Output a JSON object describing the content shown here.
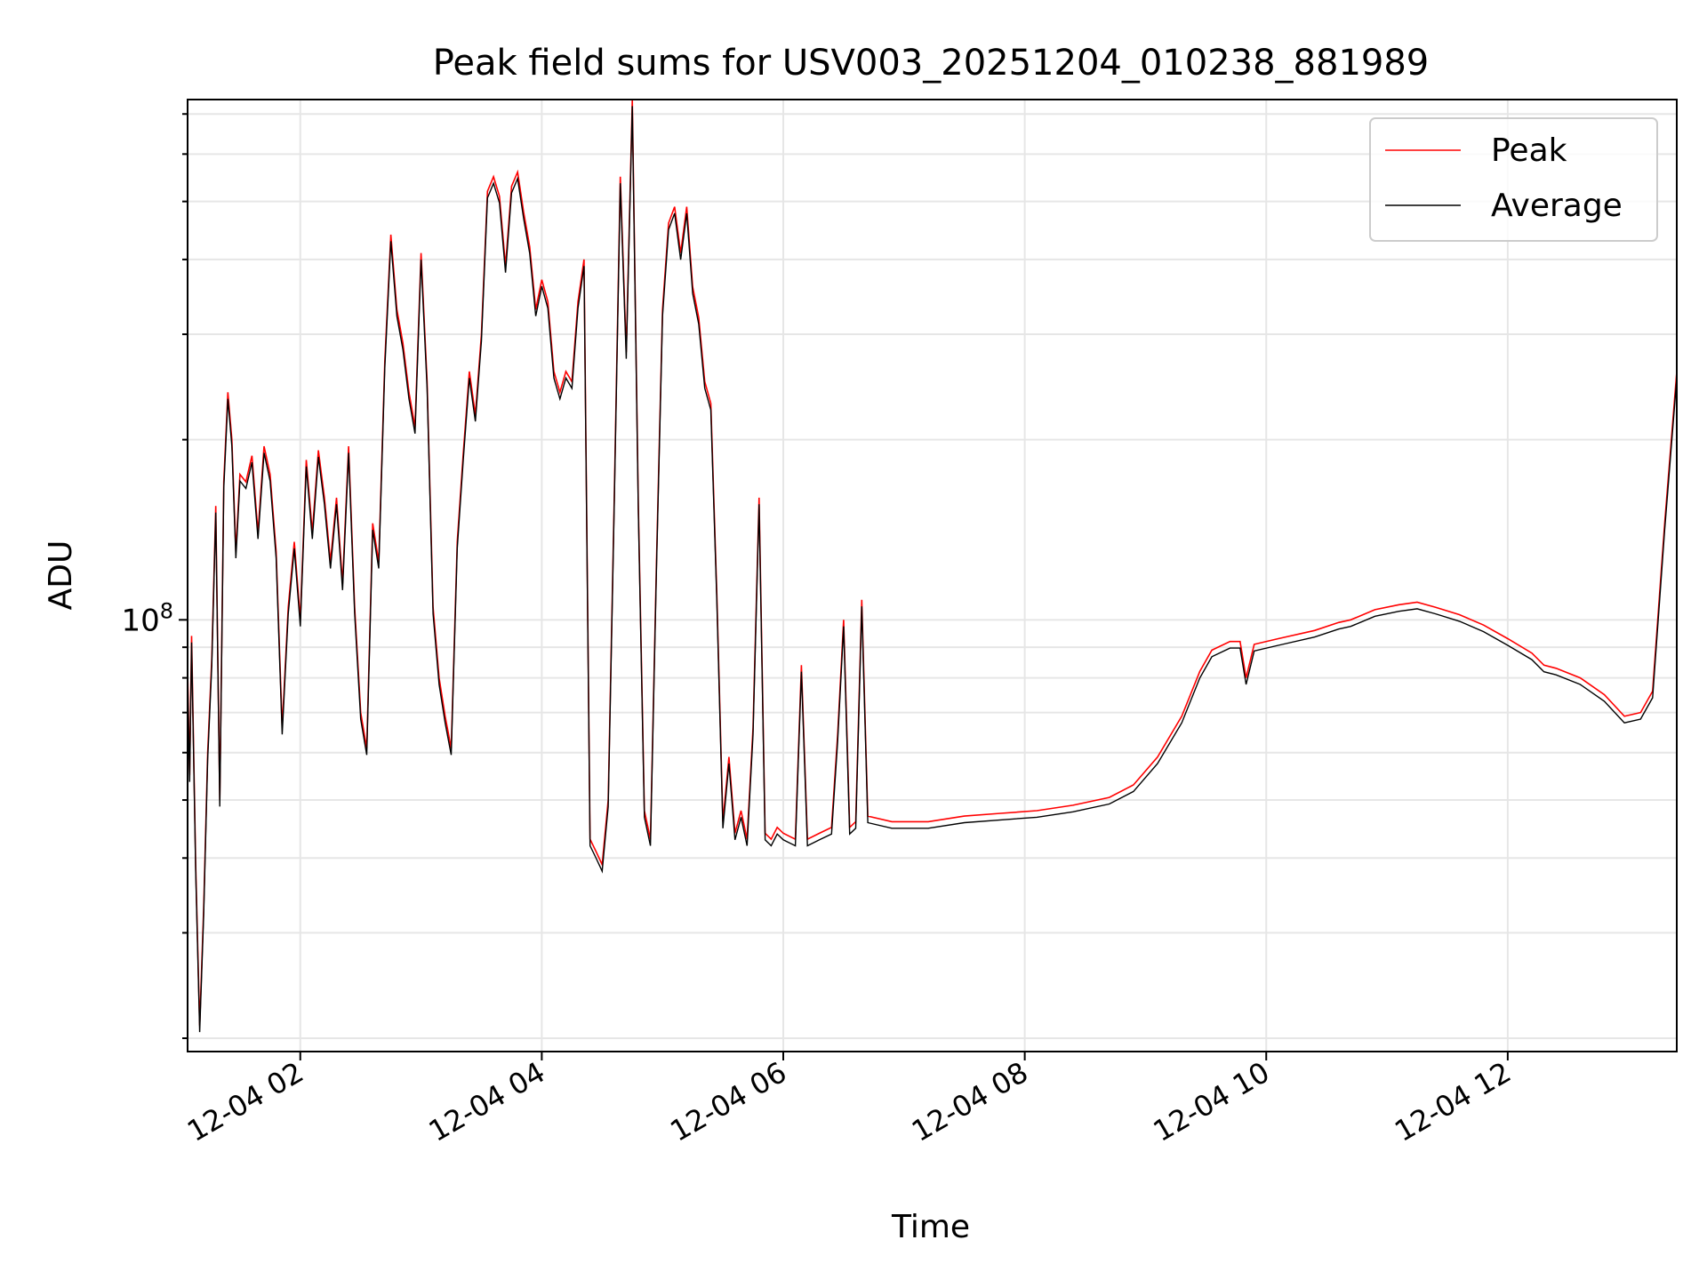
{
  "chart_data": {
    "type": "line",
    "title": "Peak field sums for USV003_20251204_010238_881989",
    "xlabel": "Time",
    "ylabel": "ADU",
    "yscale": "log",
    "xlim": [
      "2025-12-04 01:04",
      "2025-12-04 13:24"
    ],
    "ylim": [
      19000000,
      740000000
    ],
    "x_ticks": [
      "12-04 02",
      "12-04 04",
      "12-04 06",
      "12-04 08",
      "12-04 10",
      "12-04 12"
    ],
    "x_tick_values": [
      "2025-12-04 02:00",
      "2025-12-04 04:00",
      "2025-12-04 06:00",
      "2025-12-04 08:00",
      "2025-12-04 10:00",
      "2025-12-04 12:00"
    ],
    "y_ticks": [
      {
        "base": "10",
        "exp": "8",
        "value": 100000000
      }
    ],
    "grid": true,
    "legend_position": "top-right",
    "series": [
      {
        "name": "Peak",
        "color": "#ff0000",
        "points": [
          [
            "2025-12-04 01:04",
            83000000.0
          ],
          [
            "2025-12-04 01:05",
            55000000.0
          ],
          [
            "2025-12-04 01:06",
            94000000.0
          ],
          [
            "2025-12-04 01:08",
            39000000.0
          ],
          [
            "2025-12-04 01:10",
            21000000.0
          ],
          [
            "2025-12-04 01:12",
            33000000.0
          ],
          [
            "2025-12-04 01:14",
            60000000.0
          ],
          [
            "2025-12-04 01:16",
            86000000.0
          ],
          [
            "2025-12-04 01:18",
            155000000.0
          ],
          [
            "2025-12-04 01:20",
            50000000.0
          ],
          [
            "2025-12-04 01:22",
            170000000.0
          ],
          [
            "2025-12-04 01:24",
            240000000.0
          ],
          [
            "2025-12-04 01:26",
            200000000.0
          ],
          [
            "2025-12-04 01:28",
            130000000.0
          ],
          [
            "2025-12-04 01:30",
            175000000.0
          ],
          [
            "2025-12-04 01:33",
            170000000.0
          ],
          [
            "2025-12-04 01:36",
            188000000.0
          ],
          [
            "2025-12-04 01:39",
            140000000.0
          ],
          [
            "2025-12-04 01:42",
            195000000.0
          ],
          [
            "2025-12-04 01:45",
            175000000.0
          ],
          [
            "2025-12-04 01:48",
            130000000.0
          ],
          [
            "2025-12-04 01:51",
            66000000.0
          ],
          [
            "2025-12-04 01:54",
            105000000.0
          ],
          [
            "2025-12-04 01:57",
            135000000.0
          ],
          [
            "2025-12-04 02:00",
            100000000.0
          ],
          [
            "2025-12-04 02:03",
            185000000.0
          ],
          [
            "2025-12-04 02:06",
            140000000.0
          ],
          [
            "2025-12-04 02:09",
            192000000.0
          ],
          [
            "2025-12-04 02:12",
            160000000.0
          ],
          [
            "2025-12-04 02:15",
            125000000.0
          ],
          [
            "2025-12-04 02:18",
            160000000.0
          ],
          [
            "2025-12-04 02:21",
            115000000.0
          ],
          [
            "2025-12-04 02:24",
            195000000.0
          ],
          [
            "2025-12-04 02:27",
            105000000.0
          ],
          [
            "2025-12-04 02:30",
            70000000.0
          ],
          [
            "2025-12-04 02:33",
            61000000.0
          ],
          [
            "2025-12-04 02:36",
            145000000.0
          ],
          [
            "2025-12-04 02:39",
            125000000.0
          ],
          [
            "2025-12-04 02:42",
            270000000.0
          ],
          [
            "2025-12-04 02:45",
            440000000.0
          ],
          [
            "2025-12-04 02:48",
            330000000.0
          ],
          [
            "2025-12-04 02:51",
            290000000.0
          ],
          [
            "2025-12-04 02:54",
            240000000.0
          ],
          [
            "2025-12-04 02:57",
            210000000.0
          ],
          [
            "2025-12-04 03:00",
            410000000.0
          ],
          [
            "2025-12-04 03:03",
            250000000.0
          ],
          [
            "2025-12-04 03:06",
            105000000.0
          ],
          [
            "2025-12-04 03:09",
            80000000.0
          ],
          [
            "2025-12-04 03:12",
            69000000.0
          ],
          [
            "2025-12-04 03:15",
            61000000.0
          ],
          [
            "2025-12-04 03:18",
            135000000.0
          ],
          [
            "2025-12-04 03:21",
            190000000.0
          ],
          [
            "2025-12-04 03:24",
            260000000.0
          ],
          [
            "2025-12-04 03:27",
            220000000.0
          ],
          [
            "2025-12-04 03:30",
            300000000.0
          ],
          [
            "2025-12-04 03:33",
            520000000.0
          ],
          [
            "2025-12-04 03:36",
            550000000.0
          ],
          [
            "2025-12-04 03:39",
            510000000.0
          ],
          [
            "2025-12-04 03:42",
            390000000.0
          ],
          [
            "2025-12-04 03:45",
            530000000.0
          ],
          [
            "2025-12-04 03:48",
            560000000.0
          ],
          [
            "2025-12-04 03:51",
            480000000.0
          ],
          [
            "2025-12-04 03:54",
            420000000.0
          ],
          [
            "2025-12-04 03:57",
            330000000.0
          ],
          [
            "2025-12-04 04:00",
            370000000.0
          ],
          [
            "2025-12-04 04:03",
            340000000.0
          ],
          [
            "2025-12-04 04:06",
            260000000.0
          ],
          [
            "2025-12-04 04:09",
            240000000.0
          ],
          [
            "2025-12-04 04:12",
            260000000.0
          ],
          [
            "2025-12-04 04:15",
            250000000.0
          ],
          [
            "2025-12-04 04:18",
            340000000.0
          ],
          [
            "2025-12-04 04:21",
            400000000.0
          ],
          [
            "2025-12-04 04:24",
            43000000.0
          ],
          [
            "2025-12-04 04:27",
            41000000.0
          ],
          [
            "2025-12-04 04:30",
            39000000.0
          ],
          [
            "2025-12-04 04:33",
            50000000.0
          ],
          [
            "2025-12-04 04:36",
            160000000.0
          ],
          [
            "2025-12-04 04:39",
            550000000.0
          ],
          [
            "2025-12-04 04:42",
            280000000.0
          ],
          [
            "2025-12-04 04:45",
            740000000.0
          ],
          [
            "2025-12-04 04:48",
            155000000.0
          ],
          [
            "2025-12-04 04:51",
            48000000.0
          ],
          [
            "2025-12-04 04:54",
            43000000.0
          ],
          [
            "2025-12-04 04:57",
            125000000.0
          ],
          [
            "2025-12-04 05:00",
            330000000.0
          ],
          [
            "2025-12-04 05:03",
            460000000.0
          ],
          [
            "2025-12-04 05:06",
            490000000.0
          ],
          [
            "2025-12-04 05:09",
            410000000.0
          ],
          [
            "2025-12-04 05:12",
            490000000.0
          ],
          [
            "2025-12-04 05:15",
            360000000.0
          ],
          [
            "2025-12-04 05:18",
            320000000.0
          ],
          [
            "2025-12-04 05:21",
            250000000.0
          ],
          [
            "2025-12-04 05:24",
            230000000.0
          ],
          [
            "2025-12-04 05:27",
            110000000.0
          ],
          [
            "2025-12-04 05:30",
            46000000.0
          ],
          [
            "2025-12-04 05:33",
            59000000.0
          ],
          [
            "2025-12-04 05:36",
            44000000.0
          ],
          [
            "2025-12-04 05:39",
            48000000.0
          ],
          [
            "2025-12-04 05:42",
            43000000.0
          ],
          [
            "2025-12-04 05:45",
            66000000.0
          ],
          [
            "2025-12-04 05:48",
            160000000.0
          ],
          [
            "2025-12-04 05:51",
            44000000.0
          ],
          [
            "2025-12-04 05:54",
            43000000.0
          ],
          [
            "2025-12-04 05:57",
            45000000.0
          ],
          [
            "2025-12-04 06:00",
            44000000.0
          ],
          [
            "2025-12-04 06:06",
            43000000.0
          ],
          [
            "2025-12-04 06:09",
            84000000.0
          ],
          [
            "2025-12-04 06:12",
            43000000.0
          ],
          [
            "2025-12-04 06:18",
            44000000.0
          ],
          [
            "2025-12-04 06:24",
            45000000.0
          ],
          [
            "2025-12-04 06:27",
            64000000.0
          ],
          [
            "2025-12-04 06:30",
            100000000.0
          ],
          [
            "2025-12-04 06:33",
            45000000.0
          ],
          [
            "2025-12-04 06:36",
            46000000.0
          ],
          [
            "2025-12-04 06:39",
            108000000.0
          ],
          [
            "2025-12-04 06:42",
            47000000.0
          ],
          [
            "2025-12-04 06:54",
            46000000.0
          ],
          [
            "2025-12-04 07:12",
            46000000.0
          ],
          [
            "2025-12-04 07:30",
            47000000.0
          ],
          [
            "2025-12-04 07:48",
            47500000.0
          ],
          [
            "2025-12-04 08:06",
            48000000.0
          ],
          [
            "2025-12-04 08:24",
            49000000.0
          ],
          [
            "2025-12-04 08:42",
            50500000.0
          ],
          [
            "2025-12-04 08:54",
            53000000.0
          ],
          [
            "2025-12-04 09:06",
            59000000.0
          ],
          [
            "2025-12-04 09:18",
            69000000.0
          ],
          [
            "2025-12-04 09:27",
            82000000.0
          ],
          [
            "2025-12-04 09:33",
            89000000.0
          ],
          [
            "2025-12-04 09:42",
            92000000.0
          ],
          [
            "2025-12-04 09:47",
            92000000.0
          ],
          [
            "2025-12-04 09:50",
            80000000.0
          ],
          [
            "2025-12-04 09:54",
            91000000.0
          ],
          [
            "2025-12-04 10:06",
            93000000.0
          ],
          [
            "2025-12-04 10:24",
            96000000.0
          ],
          [
            "2025-12-04 10:36",
            99000000.0
          ],
          [
            "2025-12-04 10:42",
            100000000.0
          ],
          [
            "2025-12-04 10:54",
            104000000.0
          ],
          [
            "2025-12-04 11:06",
            106000000.0
          ],
          [
            "2025-12-04 11:15",
            107000000.0
          ],
          [
            "2025-12-04 11:24",
            105000000.0
          ],
          [
            "2025-12-04 11:36",
            102000000.0
          ],
          [
            "2025-12-04 11:48",
            98000000.0
          ],
          [
            "2025-12-04 12:00",
            93000000.0
          ],
          [
            "2025-12-04 12:12",
            88000000.0
          ],
          [
            "2025-12-04 12:18",
            84000000.0
          ],
          [
            "2025-12-04 12:24",
            83000000.0
          ],
          [
            "2025-12-04 12:36",
            80000000.0
          ],
          [
            "2025-12-04 12:48",
            75000000.0
          ],
          [
            "2025-12-04 12:58",
            69000000.0
          ],
          [
            "2025-12-04 13:06",
            70000000.0
          ],
          [
            "2025-12-04 13:12",
            76000000.0
          ],
          [
            "2025-12-04 13:18",
            145000000.0
          ],
          [
            "2025-12-04 13:24",
            260000000.0
          ]
        ]
      },
      {
        "name": "Average",
        "color": "#000000",
        "offset_note": "",
        "scale": 0.975
      }
    ]
  }
}
